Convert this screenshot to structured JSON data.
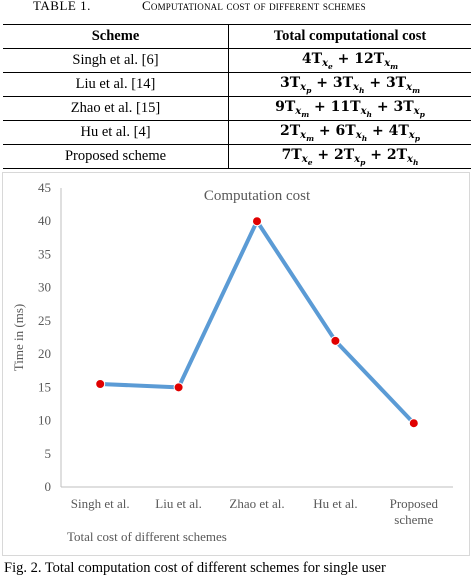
{
  "table": {
    "number": "TABLE 1.",
    "title": "Computational cost of different schemes",
    "headers": [
      "Scheme",
      "Total computational cost"
    ],
    "rows": [
      {
        "scheme": "Singh et al. [6]",
        "cost": "4T_xe + 12T_xm"
      },
      {
        "scheme": "Liu et al. [14]",
        "cost": "3T_xp + 3T_xh + 3T_xm"
      },
      {
        "scheme": "Zhao et al. [15]",
        "cost": "9T_xm + 11T_xh + 3T_xp"
      },
      {
        "scheme": "Hu et al. [4]",
        "cost": "2T_xm + 6T_xh + 4T_xp"
      },
      {
        "scheme": "Proposed scheme",
        "cost": "7T_xe + 2T_xp + 2T_xh"
      }
    ]
  },
  "chart_data": {
    "type": "line",
    "title": "Computation cost",
    "xlabel": "Total cost of different schemes",
    "ylabel": "Time in (ms)",
    "categories": [
      "Singh et al.",
      "Liu et al.",
      "Zhao et al.",
      "Hu et al.",
      "Proposed scheme"
    ],
    "values": [
      15.5,
      15,
      40,
      22,
      9.6
    ],
    "ylim": [
      0,
      45
    ],
    "yticks": [
      0,
      5,
      10,
      15,
      20,
      25,
      30,
      35,
      40,
      45
    ],
    "grid": false,
    "legend": "none",
    "colors": {
      "line": "#5b9bd5",
      "marker": "#e00000",
      "axis_text": "#595959"
    }
  },
  "figure_caption": "Fig. 2.   Total computation cost of different schemes for single user"
}
